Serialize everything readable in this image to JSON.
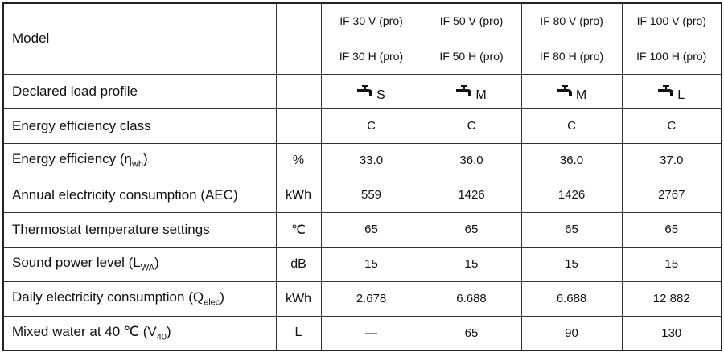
{
  "table": {
    "header": {
      "label": "Model",
      "rows": [
        [
          "IF 30 V (pro)",
          "IF 50 V (pro)",
          "IF 80 V (pro)",
          "IF 100 V (pro)"
        ],
        [
          "IF 30 H (pro)",
          "IF 50 H (pro)",
          "IF 80 H (pro)",
          "IF 100 H (pro)"
        ]
      ]
    },
    "rows": [
      {
        "label": [
          "Declared load profile"
        ],
        "icon": true,
        "values": [
          "S",
          "M",
          "M",
          "L"
        ]
      },
      {
        "label": [
          "Energy efficiency class"
        ],
        "values": [
          "C",
          "C",
          "C",
          "C"
        ]
      },
      {
        "label": [
          "Energy efficiency (η",
          {
            "sub": "wh"
          },
          ")"
        ],
        "unit": "%",
        "values": [
          "33.0",
          "36.0",
          "36.0",
          "37.0"
        ]
      },
      {
        "label": [
          "Annual electricity consumption (AEC)"
        ],
        "unit": "kWh",
        "values": [
          "559",
          "1426",
          "1426",
          "2767"
        ]
      },
      {
        "label": [
          "Thermostat temperature settings"
        ],
        "unit": "℃",
        "values": [
          "65",
          "65",
          "65",
          "65"
        ]
      },
      {
        "label": [
          "Sound power level (L",
          {
            "sub": "WA"
          },
          ")"
        ],
        "unit": "dB",
        "values": [
          "15",
          "15",
          "15",
          "15"
        ]
      },
      {
        "label": [
          "Daily electricity consumption (Q",
          {
            "sub": "elec"
          },
          ")"
        ],
        "unit": "kWh",
        "values": [
          "2.678",
          "6.688",
          "6.688",
          "12.882"
        ]
      },
      {
        "label": [
          "Mixed water at 40 ℃ (V",
          {
            "sub": "40"
          },
          ")"
        ],
        "unit": "L",
        "values": [
          "—",
          "65",
          "90",
          "130"
        ]
      }
    ]
  }
}
